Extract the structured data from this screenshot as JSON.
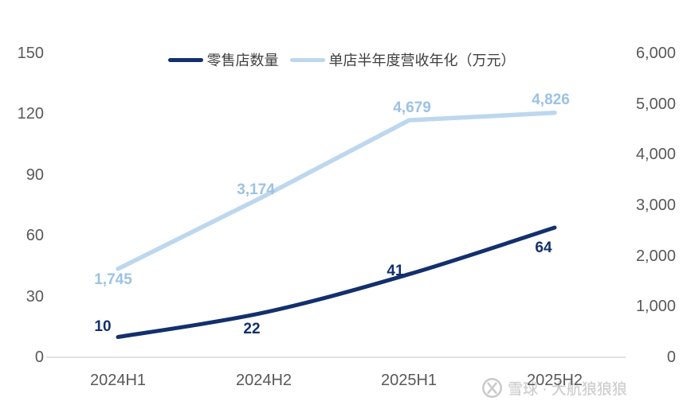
{
  "chart_data": {
    "type": "line",
    "title": "",
    "categories": [
      "2024H1",
      "2024H2",
      "2025H1",
      "2025H2"
    ],
    "series": [
      {
        "name": "零售店数量",
        "axis": "left",
        "values": [
          10,
          22,
          41,
          64
        ],
        "labels": [
          "10",
          "22",
          "41",
          "64"
        ],
        "color": "#13306d",
        "label_color": "#13306d",
        "smooth": true
      },
      {
        "name": "单店半年度营收年化（万元）",
        "axis": "right",
        "values": [
          1745,
          3174,
          4679,
          4826
        ],
        "labels": [
          "1,745",
          "3,174",
          "4,679",
          "4,826"
        ],
        "color": "#bdd7ee",
        "label_color": "#9cc2e5",
        "smooth": false
      }
    ],
    "left_axis": {
      "min": 0,
      "max": 150,
      "ticks": [
        "150",
        "120",
        "90",
        "60",
        "30",
        "0"
      ]
    },
    "right_axis": {
      "min": 0,
      "max": 6000,
      "ticks": [
        "6,000",
        "5,000",
        "4,000",
        "3,000",
        "2,000",
        "1,000",
        "0"
      ]
    },
    "grid": false,
    "legend_position": "top-center",
    "axis_line_color": "#d9d9d9",
    "tick_color": "#595959"
  },
  "watermark": {
    "text": "雪球 · 大航狼狼狼",
    "logo": "xueqiu-snowball-icon"
  }
}
